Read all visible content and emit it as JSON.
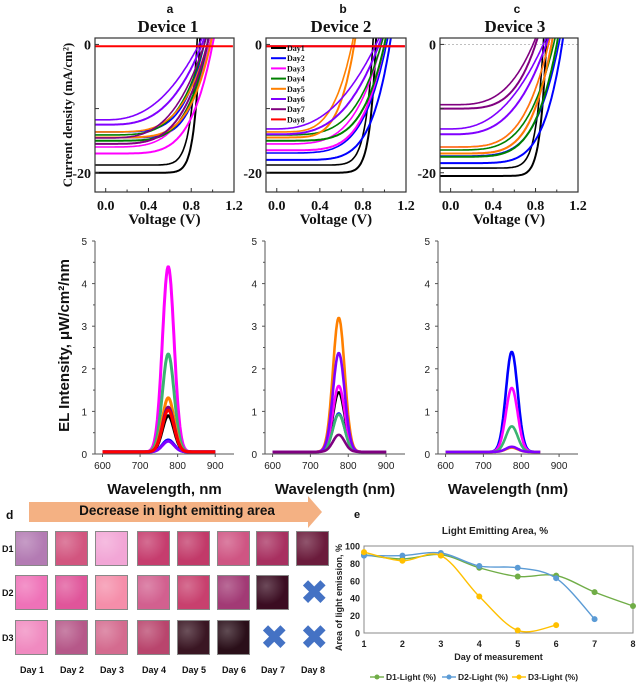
{
  "chart_data": [
    {
      "panel": "a",
      "type": "line",
      "title": "Device 1",
      "xlabel": "Voltage (V)",
      "ylabel": "Current density (mA/cm²)",
      "xlim": [
        -0.1,
        1.2
      ],
      "ylim": [
        -23,
        1
      ],
      "xticks": [
        "0.0",
        "0.4",
        "0.8",
        "1.2"
      ],
      "yticks": [
        "0",
        "-20"
      ],
      "series": [
        {
          "name": "Day1",
          "color": "#000000",
          "jsc": -20.0,
          "voc": 0.88
        },
        {
          "name": "Day2",
          "color": "#0000ff",
          "jsc": -14.5,
          "voc": 0.95
        },
        {
          "name": "Day3",
          "color": "#ff00ff",
          "jsc": -17.0,
          "voc": 1.0
        },
        {
          "name": "Day4",
          "color": "#008000",
          "jsc": -15.0,
          "voc": 0.95
        },
        {
          "name": "Day5",
          "color": "#ff8000",
          "jsc": -14.5,
          "voc": 0.98
        },
        {
          "name": "Day6",
          "color": "#8000ff",
          "jsc": -12.5,
          "voc": 0.9
        },
        {
          "name": "Day7",
          "color": "#800080",
          "jsc": -15.5,
          "voc": 0.95
        },
        {
          "name": "Day8",
          "color": "#ff0000",
          "jsc": 0.0,
          "voc": 0.0
        }
      ]
    },
    {
      "panel": "b",
      "type": "line",
      "title": "Device 2",
      "xlabel": "Voltage (V)",
      "ylabel": "",
      "xlim": [
        -0.1,
        1.2
      ],
      "ylim": [
        -23,
        1
      ],
      "xticks": [
        "0.0",
        "0.4",
        "0.8",
        "1.2"
      ],
      "yticks": [
        "0",
        "-20"
      ],
      "legend": [
        "Day1",
        "Day2",
        "Day3",
        "Day4",
        "Day5",
        "Day6",
        "Day7",
        "Day8"
      ],
      "legend_position": "top-left",
      "series": [
        {
          "name": "Day1",
          "color": "#000000",
          "jsc": -20.0,
          "voc": 0.92
        },
        {
          "name": "Day2",
          "color": "#0000ff",
          "jsc": -18.0,
          "voc": 1.05
        },
        {
          "name": "Day3",
          "color": "#ff00ff",
          "jsc": -16.5,
          "voc": 1.0
        },
        {
          "name": "Day4",
          "color": "#008000",
          "jsc": -15.0,
          "voc": 1.0
        },
        {
          "name": "Day5",
          "color": "#ff8000",
          "jsc": -14.5,
          "voc": 0.72
        },
        {
          "name": "Day6",
          "color": "#8000ff",
          "jsc": -14.0,
          "voc": 0.95
        },
        {
          "name": "Day7",
          "color": "#800080",
          "jsc": 0.0,
          "voc": 0.0
        },
        {
          "name": "Day8",
          "color": "#ff0000",
          "jsc": 0.0,
          "voc": 0.0
        }
      ]
    },
    {
      "panel": "c",
      "type": "line",
      "title": "Device 3",
      "xlabel": "Voltage (V)",
      "ylabel": "",
      "xlim": [
        -0.1,
        1.2
      ],
      "ylim": [
        -23,
        1
      ],
      "xticks": [
        "0.0",
        "0.4",
        "0.8",
        "1.2"
      ],
      "yticks": [
        "0",
        "-20"
      ],
      "series": [
        {
          "name": "Day1",
          "color": "#000000",
          "jsc": -20.5,
          "voc": 0.9
        },
        {
          "name": "Day2",
          "color": "#0000ff",
          "jsc": -18.5,
          "voc": 1.05
        },
        {
          "name": "Day3",
          "color": "#ff00ff",
          "jsc": -17.0,
          "voc": 0.95
        },
        {
          "name": "Day4",
          "color": "#008000",
          "jsc": -17.5,
          "voc": 1.0
        },
        {
          "name": "Day5",
          "color": "#ff8000",
          "jsc": -17.0,
          "voc": 0.95
        },
        {
          "name": "Day6",
          "color": "#8000ff",
          "jsc": -14.0,
          "voc": 0.9
        },
        {
          "name": "Day7",
          "color": "#800080",
          "jsc": -10.0,
          "voc": 0.8
        }
      ]
    },
    {
      "panel": "a-EL",
      "type": "line",
      "xlabel": "Wavelength, nm",
      "ylabel": "EL Intensity, μW/cm²/nm",
      "xlim": [
        580,
        950
      ],
      "ylim": [
        0,
        5
      ],
      "xticks": [
        "600",
        "700",
        "800",
        "900"
      ],
      "yticks": [
        "0",
        "1",
        "2",
        "3",
        "4",
        "5"
      ],
      "peak_nm": 775,
      "series": [
        {
          "name": "Day1",
          "color": "#000000",
          "peak": 0.85
        },
        {
          "name": "Day2",
          "color": "#0000ff",
          "peak": 0.28
        },
        {
          "name": "Day3",
          "color": "#ff00ff",
          "peak": 4.35
        },
        {
          "name": "Day4",
          "color": "#3cb371",
          "peak": 2.3
        },
        {
          "name": "Day5",
          "color": "#ff8000",
          "peak": 1.27
        },
        {
          "name": "Day6",
          "color": "#8000ff",
          "peak": 0.25
        },
        {
          "name": "Day7",
          "color": "#800080",
          "peak": 1.05
        },
        {
          "name": "Day8",
          "color": "#ff0000",
          "peak": 0.98
        }
      ]
    },
    {
      "panel": "b-EL",
      "type": "line",
      "xlabel": "Wavelength (nm)",
      "ylabel": "",
      "xlim": [
        580,
        950
      ],
      "ylim": [
        0,
        5
      ],
      "xticks": [
        "600",
        "700",
        "800",
        "900"
      ],
      "yticks": [
        "0",
        "1",
        "2",
        "3",
        "4",
        "5"
      ],
      "peak_nm": 775,
      "series": [
        {
          "name": "Day1",
          "color": "#000000",
          "peak": 1.4
        },
        {
          "name": "Day2",
          "color": "#0000ff",
          "peak": 0.9
        },
        {
          "name": "Day3",
          "color": "#ff00ff",
          "peak": 1.55
        },
        {
          "name": "Day4",
          "color": "#3cb371",
          "peak": 0.88
        },
        {
          "name": "Day5",
          "color": "#ff8000",
          "peak": 3.15
        },
        {
          "name": "Day6",
          "color": "#8000ff",
          "peak": 2.32
        },
        {
          "name": "Day7",
          "color": "#800080",
          "peak": 0.4
        }
      ]
    },
    {
      "panel": "c-EL",
      "type": "line",
      "xlabel": "Wavelength (nm)",
      "ylabel": "",
      "xlim": [
        580,
        950
      ],
      "ylim": [
        0,
        5
      ],
      "xticks": [
        "600",
        "700",
        "800",
        "900"
      ],
      "yticks": [
        "0",
        "1",
        "2",
        "3",
        "4",
        "5"
      ],
      "peak_nm": 775,
      "series": [
        {
          "name": "Day2",
          "color": "#0000ff",
          "peak": 2.35
        },
        {
          "name": "Day3",
          "color": "#ff00ff",
          "peak": 1.5
        },
        {
          "name": "Day4",
          "color": "#3cb371",
          "peak": 0.6
        },
        {
          "name": "Day5",
          "color": "#ff8000",
          "peak": 0.1
        },
        {
          "name": "Day6",
          "color": "#8000ff",
          "peak": 0.12
        }
      ]
    },
    {
      "panel": "e",
      "type": "line",
      "title": "Light Emitting Area, %",
      "xlabel": "Day of measurement",
      "ylabel": "Area of light emission, %",
      "xlim": [
        1,
        8
      ],
      "ylim": [
        0,
        100
      ],
      "xticks": [
        "1",
        "2",
        "3",
        "4",
        "5",
        "6",
        "7",
        "8"
      ],
      "yticks": [
        "0",
        "20",
        "40",
        "60",
        "80",
        "100"
      ],
      "legend_position": "bottom",
      "series": [
        {
          "name": "D1-Light (%)",
          "color": "#70ad47",
          "x": [
            1,
            2,
            3,
            4,
            5,
            6,
            7,
            8
          ],
          "values": [
            90,
            85,
            90,
            75,
            65,
            66,
            47,
            31
          ]
        },
        {
          "name": "D2-Light (%)",
          "color": "#5b9bd5",
          "x": [
            1,
            2,
            3,
            4,
            5,
            6,
            7
          ],
          "values": [
            89,
            89,
            92,
            77,
            75,
            63,
            16
          ]
        },
        {
          "name": "D3-Light (%)",
          "color": "#ffc000",
          "x": [
            1,
            2,
            3,
            4,
            5,
            6
          ],
          "values": [
            93,
            83,
            89,
            42,
            3,
            9
          ]
        }
      ]
    }
  ],
  "panel_labels": {
    "a": "a",
    "b": "b",
    "c": "c",
    "d": "d",
    "e": "e"
  },
  "panel_d": {
    "arrow_text": "Decrease in light emitting area",
    "arrow_color": "#f4b183",
    "rows": [
      "D1",
      "D2",
      "D3"
    ],
    "days": [
      "Day 1",
      "Day 2",
      "Day 3",
      "Day 4",
      "Day 5",
      "Day 6",
      "Day 7",
      "Day 8"
    ],
    "missing_marker": "✖",
    "missing_color": "#4472c4",
    "tiles": [
      [
        "#b37bb3",
        "#d2557f",
        "#f2a6d6",
        "#c63d6e",
        "#c23a69",
        "#cf5583",
        "#a83060",
        "#6b1c3c"
      ],
      [
        "#ef72b8",
        "#e0559a",
        "#f58eaa",
        "#d2608f",
        "#c8406e",
        "#a23a75",
        "#3b0d22",
        null
      ],
      [
        "#f08ac0",
        "#b65889",
        "#d46b8f",
        "#b9456d",
        "#3a1623",
        "#2a0f19",
        null,
        null
      ]
    ]
  }
}
